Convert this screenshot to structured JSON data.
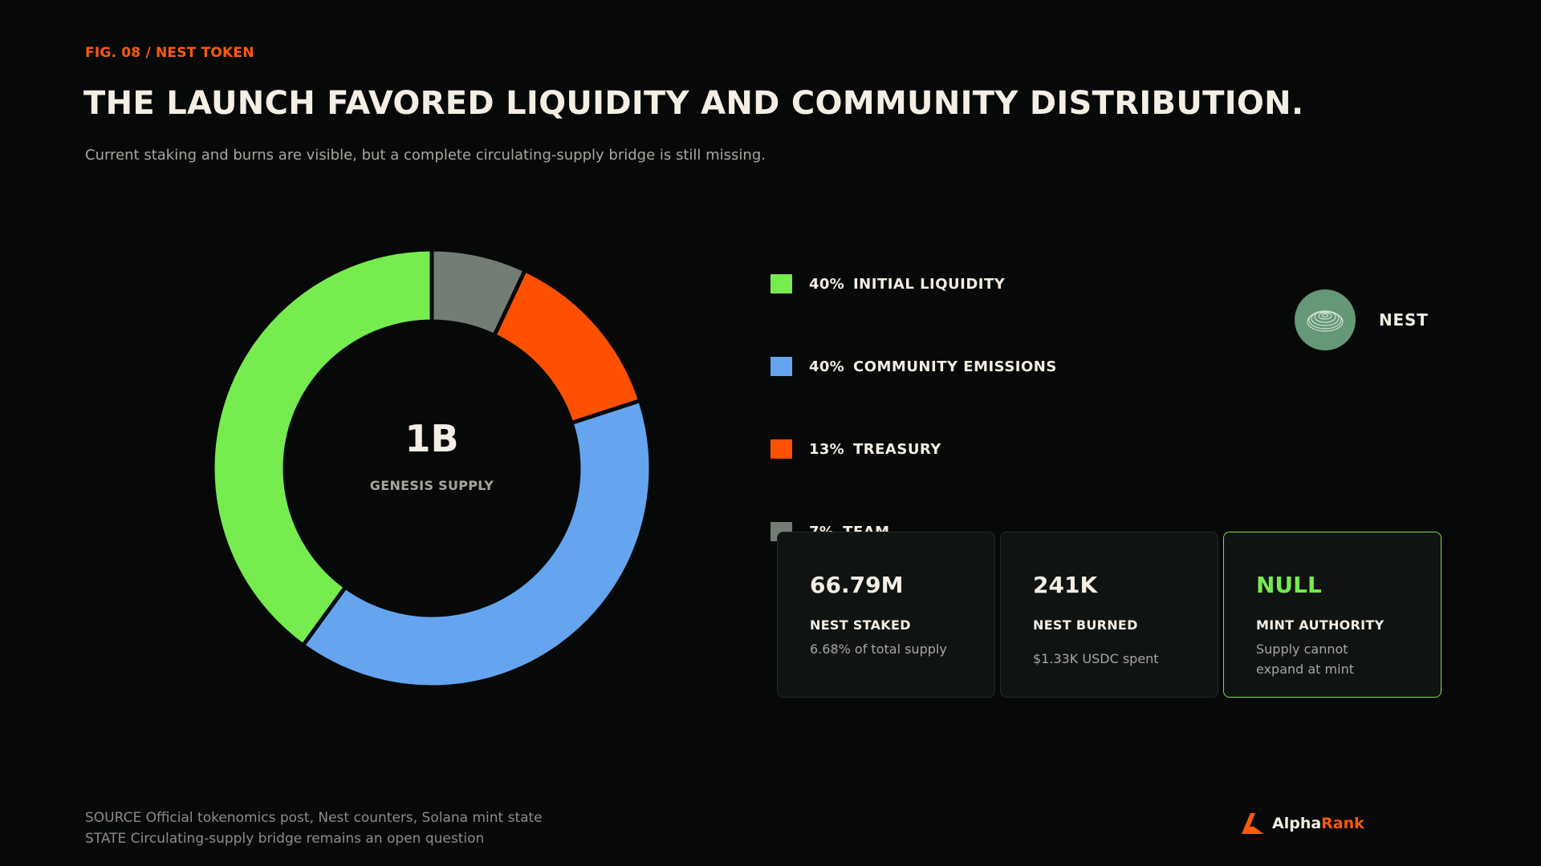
{
  "header": {
    "fig_label": "FIG. 08 / NEST TOKEN",
    "title": "THE LAUNCH FAVORED LIQUIDITY AND COMMUNITY DISTRIBUTION.",
    "subtitle": "Current staking and burns are visible, but a complete circulating-supply bridge is still missing."
  },
  "chart_data": {
    "type": "pie",
    "variant": "donut",
    "title": "",
    "center_value": "1B",
    "center_label": "GENESIS SUPPLY",
    "start": "top, clockwise",
    "slices": [
      {
        "label": "TEAM",
        "pct_label": "7%",
        "value": 7,
        "color": "#737d76"
      },
      {
        "label": "TREASURY",
        "pct_label": "13%",
        "value": 13,
        "color": "#ff5000"
      },
      {
        "label": "COMMUNITY EMISSIONS",
        "pct_label": "40%",
        "value": 40,
        "color": "#65a4ee"
      },
      {
        "label": "INITIAL LIQUIDITY",
        "pct_label": "40%",
        "value": 40,
        "color": "#76ec4f"
      }
    ],
    "legend": {
      "placement": "right",
      "order": [
        "INITIAL LIQUIDITY",
        "COMMUNITY EMISSIONS",
        "TREASURY",
        "TEAM"
      ]
    }
  },
  "token": {
    "name": "NEST",
    "icon": "nest-token-icon",
    "color": "#649876"
  },
  "stats": [
    {
      "value": "66.79M",
      "label": "NEST STAKED",
      "note": "6.68% of total supply",
      "accent": false
    },
    {
      "value": "241K",
      "label": "NEST BURNED",
      "note": "$1.33K USDC spent",
      "accent": false
    },
    {
      "value": "NULL",
      "label": "MINT AUTHORITY",
      "note": "Supply cannot expand at mint",
      "accent": true
    }
  ],
  "footer": {
    "source": "SOURCE  Official tokenomics post, Nest counters, Solana mint state",
    "state": "STATE  Circulating-supply bridge remains an open question",
    "brand_a": "Alpha",
    "brand_b": "Rank"
  }
}
